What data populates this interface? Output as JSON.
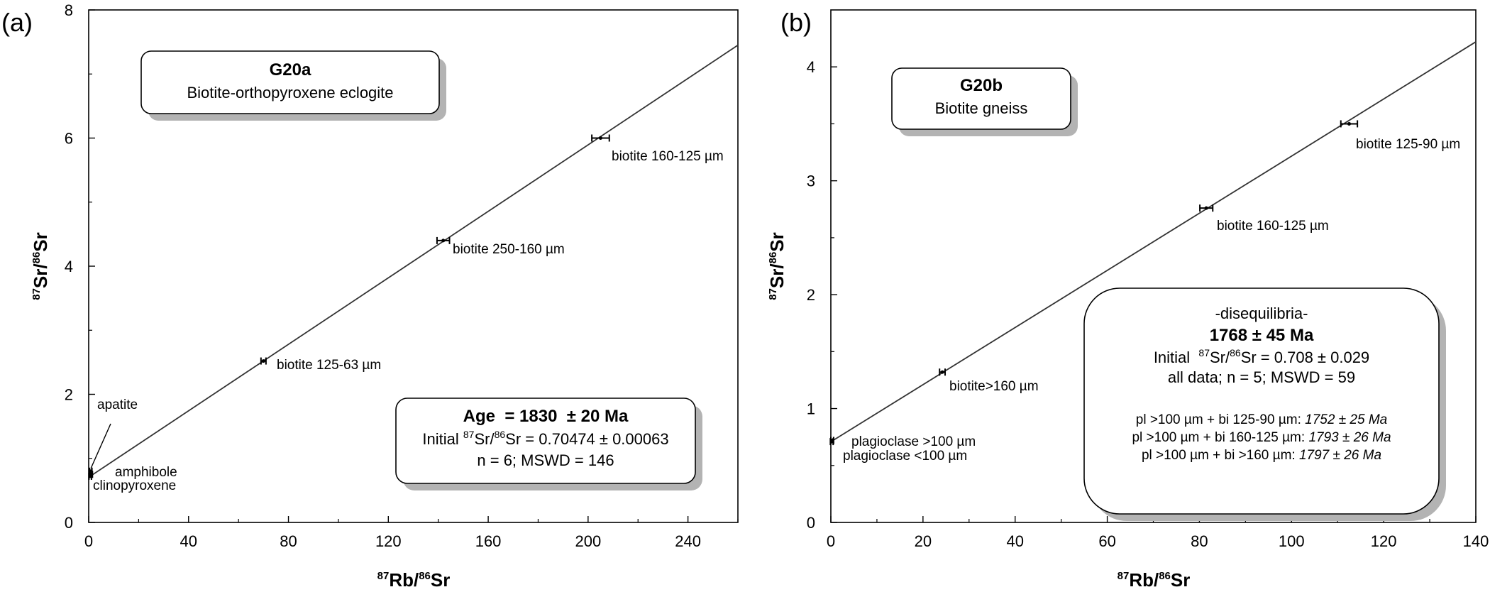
{
  "chart_data": [
    {
      "type": "scatter",
      "panel_label": "(a)",
      "xlabel": {
        "sup1": "87",
        "main1": "Rb/",
        "sup2": "86",
        "main2": "Sr"
      },
      "ylabel": {
        "sup1": "87",
        "main1": "Sr/",
        "sup2": "86",
        "main2": "Sr"
      },
      "xlim": [
        0,
        260
      ],
      "ylim": [
        0,
        8
      ],
      "xticks": [
        0,
        40,
        80,
        120,
        160,
        200,
        240
      ],
      "xminor": [
        20,
        60,
        100,
        140,
        180,
        220,
        260
      ],
      "yticks": [
        0,
        2,
        4,
        6,
        8
      ],
      "yminor": [
        1,
        3,
        5,
        7
      ],
      "isochron": {
        "x": [
          0,
          260
        ],
        "y": [
          0.70474,
          7.45
        ]
      },
      "points": [
        {
          "x": 0.6,
          "y": 0.72,
          "xerr": 0.5,
          "label": "clinopyroxene"
        },
        {
          "x": 1.0,
          "y": 0.75,
          "xerr": 0.5,
          "label": "amphibole"
        },
        {
          "x": 0.8,
          "y": 0.8,
          "xerr": 0.5,
          "label": "apatite"
        },
        {
          "x": 70,
          "y": 2.52,
          "xerr": 1.0,
          "label": "biotite 125-63 µm"
        },
        {
          "x": 142,
          "y": 4.4,
          "xerr": 2.5,
          "label": "biotite 250-160 µm"
        },
        {
          "x": 205,
          "y": 6.0,
          "xerr": 3.5,
          "label": "biotite 160-125 µm"
        }
      ],
      "sample_box": {
        "title": "G20a",
        "subtitle": "Biotite-orthopyroxene  eclogite"
      },
      "result_box": {
        "line1": "Age  = 1830  ± 20 Ma",
        "line2_pre": "Initial ",
        "line2_sup1": "87",
        "line2_mid": "Sr/",
        "line2_sup2": "86",
        "line2_post": "Sr = 0.70474 ± 0.00063",
        "line3": "n = 6; MSWD = 146"
      }
    },
    {
      "type": "scatter",
      "panel_label": "(b)",
      "xlabel": {
        "sup1": "87",
        "main1": "Rb/",
        "sup2": "86",
        "main2": "Sr"
      },
      "ylabel": {
        "sup1": "87",
        "main1": "Sr/",
        "sup2": "86",
        "main2": "Sr"
      },
      "xlim": [
        0,
        140
      ],
      "ylim": [
        0,
        4.5
      ],
      "xticks": [
        0,
        20,
        40,
        60,
        80,
        100,
        120,
        140
      ],
      "xminor": [
        10,
        30,
        50,
        70,
        90,
        110,
        130
      ],
      "yticks": [
        0,
        1,
        2,
        3,
        4
      ],
      "yminor": [
        0.5,
        1.5,
        2.5,
        3.5
      ],
      "isochron": {
        "x": [
          0,
          140
        ],
        "y": [
          0.708,
          4.22
        ]
      },
      "points": [
        {
          "x": 0.2,
          "y": 0.71,
          "xerr": 0.3,
          "label": "plagioclase >100 µm"
        },
        {
          "x": 0.3,
          "y": 0.72,
          "xerr": 0.3,
          "label": "plagioclase <100 µm"
        },
        {
          "x": 24.2,
          "y": 1.32,
          "xerr": 0.6,
          "label": "biotite>160 µm"
        },
        {
          "x": 81.5,
          "y": 2.76,
          "xerr": 1.4,
          "label": "biotite 160-125 µm"
        },
        {
          "x": 112.5,
          "y": 3.5,
          "xerr": 1.8,
          "label": "biotite 125-90 µm"
        }
      ],
      "sample_box": {
        "title": "G20b",
        "subtitle": "Biotite gneiss"
      },
      "result_box": {
        "line0": "-disequilibria-",
        "line1": "1768 ± 45 Ma",
        "line2_pre": "Initial  ",
        "line2_sup1": "87",
        "line2_mid": "Sr/",
        "line2_sup2": "86",
        "line2_post": "Sr = 0.708 ± 0.029",
        "line3": "all data; n = 5; MSWD = 59",
        "ages": [
          {
            "prefix": "pl >100 µm + bi 125-90 µm: ",
            "value": "1752 ± 25 Ma"
          },
          {
            "prefix": "pl >100 µm + bi 160-125 µm: ",
            "value": "1793 ± 26 Ma"
          },
          {
            "prefix": "pl >100 µm + bi >160 µm: ",
            "value": "1797 ± 26 Ma"
          }
        ]
      }
    }
  ]
}
